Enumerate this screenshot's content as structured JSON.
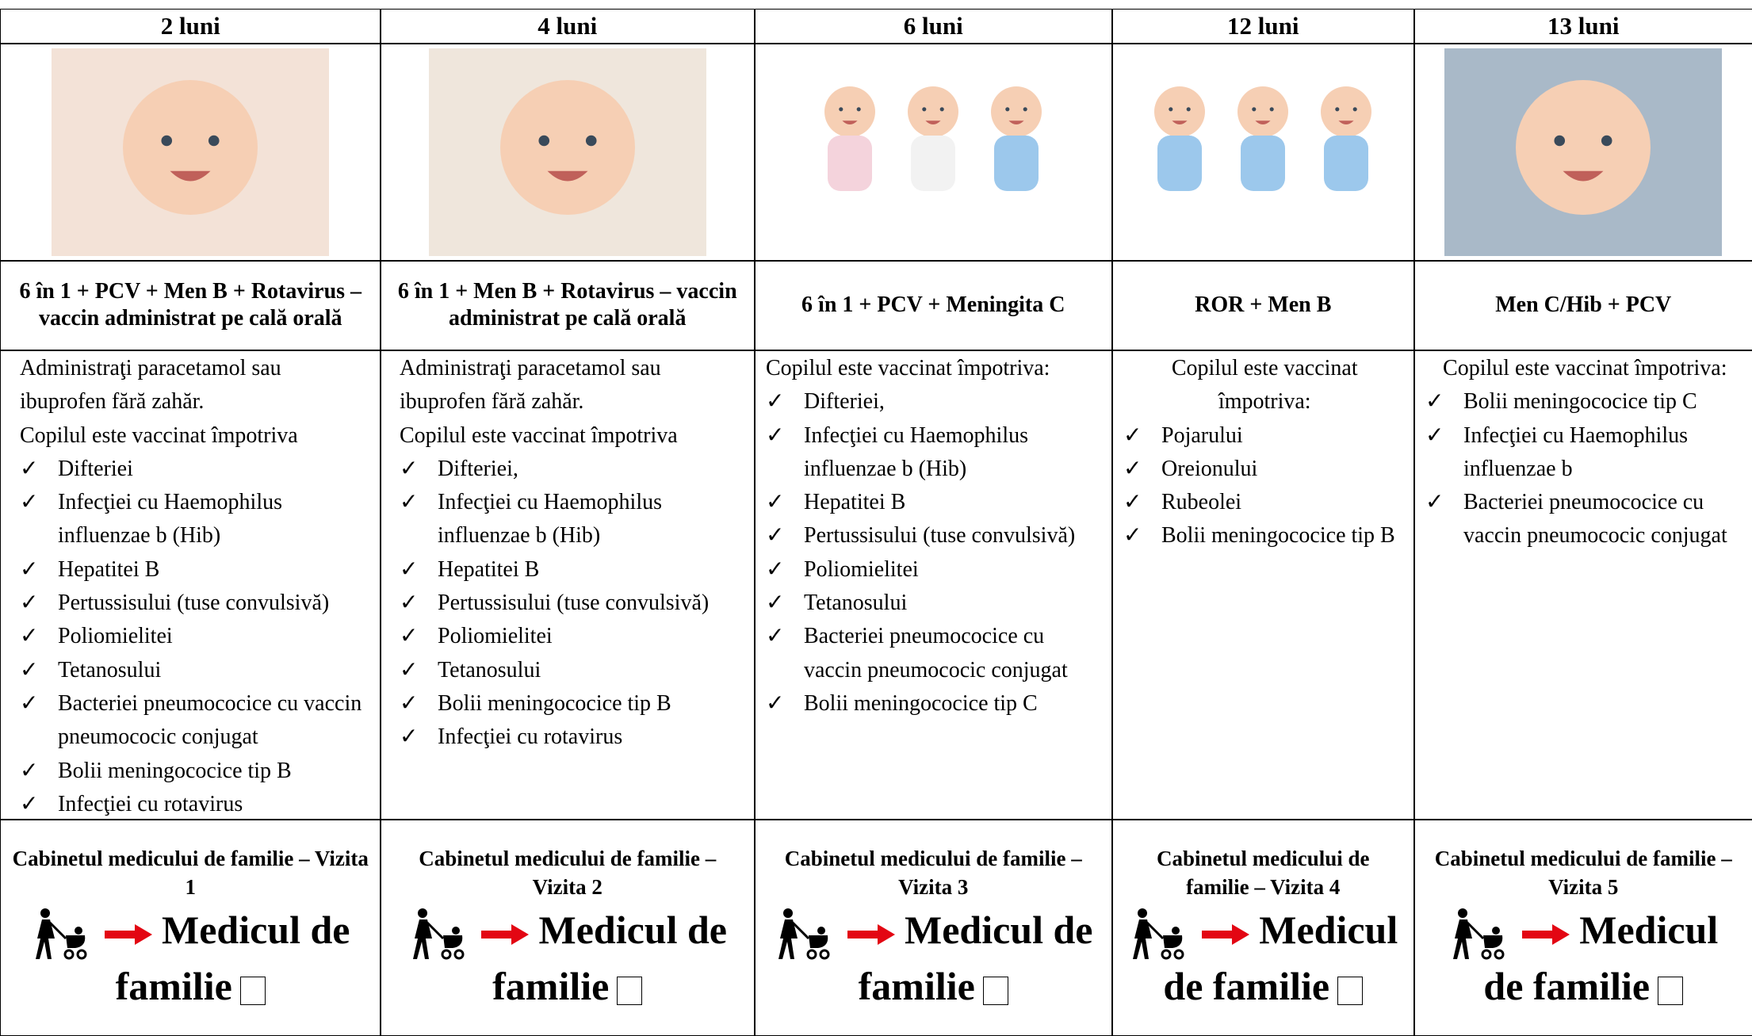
{
  "columns": [
    {
      "age": "2 luni",
      "vaccines": "6 în 1 + PCV + Men B + Rotavirus – vaccin administrat pe cală orală",
      "intro": [
        "Administraţi paracetamol sau ibuprofen fără zahăr.",
        "Copilul este vaccinat împotriva"
      ],
      "items": [
        "Difteriei",
        "Infecţiei cu Haemophilus influenzae b (Hib)",
        "Hepatitei B",
        "Pertussisului (tuse convulsivă)",
        "Poliomielitei",
        "Tetanosului",
        "Bacteriei pneumococice cu vaccin pneumococic conjugat",
        "Bolii meningococice tip B",
        "Infecţiei cu rotavirus"
      ],
      "visit": "Cabinetul medicului de familie – Vizita 1",
      "destination": "Medicul de familie"
    },
    {
      "age": "4 luni",
      "vaccines": "6 în 1 + Men B + Rotavirus – vaccin administrat pe cală orală",
      "intro": [
        "Administraţi paracetamol sau ibuprofen fără zahăr.",
        "Copilul este vaccinat împotriva"
      ],
      "items": [
        "Difteriei,",
        "Infecţiei cu Haemophilus influenzae b (Hib)",
        "Hepatitei B",
        "Pertussisului (tuse convulsivă)",
        "Poliomielitei",
        "Tetanosului",
        "Bolii meningococice tip B",
        "Infecţiei cu rotavirus"
      ],
      "visit": "Cabinetul medicului de familie – Vizita 2",
      "destination": "Medicul de familie"
    },
    {
      "age": "6 luni",
      "vaccines": "6 în 1 + PCV + Meningita C",
      "intro": [
        "Copilul este vaccinat împotriva:"
      ],
      "items": [
        "Difteriei,",
        "Infecţiei cu Haemophilus influenzae b (Hib)",
        "Hepatitei B",
        "Pertussisului (tuse convulsivă)",
        "Poliomielitei",
        "Tetanosului",
        "Bacteriei pneumococice cu vaccin pneumococic conjugat",
        "Bolii meningococice tip C"
      ],
      "visit": "Cabinetul medicului de familie – Vizita 3",
      "destination": "Medicul de familie"
    },
    {
      "age": "12 luni",
      "vaccines": "ROR + Men B",
      "intro": [
        "Copilul este vaccinat împotriva:"
      ],
      "items": [
        "Pojarului",
        "Oreionului",
        "Rubeolei",
        "Bolii meningococice tip B"
      ],
      "visit": "Cabinetul medicului de familie – Vizita 4",
      "destination": "Medicul de familie"
    },
    {
      "age": "13 luni",
      "vaccines": "Men C/Hib + PCV",
      "intro": [
        "Copilul este vaccinat împotriva:"
      ],
      "items": [
        "Bolii meningococice tip C",
        "Infecţiei cu Haemophilus influenzae b",
        "Bacteriei pneumococice cu vaccin pneumococic conjugat"
      ],
      "visit": "Cabinetul medicului de familie – Vizita 5",
      "destination": "Medicul de familie"
    }
  ]
}
